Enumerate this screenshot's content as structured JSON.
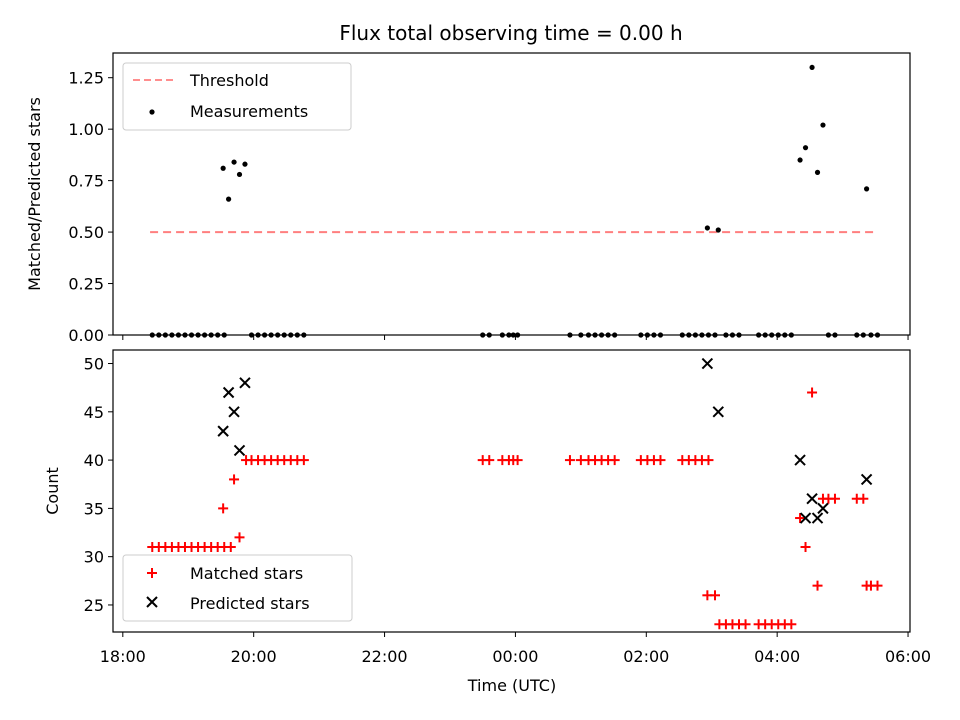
{
  "chart_data": [
    {
      "type": "scatter",
      "title": "Flux total observing time = 0.00 h",
      "xlabel": "",
      "ylabel": "Matched/Predicted stars",
      "xlim": [
        "18:00",
        "06:00"
      ],
      "ylim": [
        0,
        1.37
      ],
      "yticks": [
        "0.00",
        "0.25",
        "0.50",
        "0.75",
        "1.00",
        "1.25"
      ],
      "legend": {
        "position": "upper-left",
        "entries": [
          "Threshold",
          "Measurements"
        ]
      },
      "series": [
        {
          "name": "Threshold",
          "style": "dashed-line",
          "color": "#ff7f7f",
          "points": [
            [
              "18:25",
              0.5
            ],
            [
              "05:30",
              0.5
            ]
          ]
        },
        {
          "name": "Measurements",
          "style": "dot",
          "color": "#000000",
          "points": [
            [
              "18:27",
              0
            ],
            [
              "18:33",
              0
            ],
            [
              "18:39",
              0
            ],
            [
              "18:45",
              0
            ],
            [
              "18:51",
              0
            ],
            [
              "18:57",
              0
            ],
            [
              "19:03",
              0
            ],
            [
              "19:09",
              0
            ],
            [
              "19:15",
              0
            ],
            [
              "19:21",
              0
            ],
            [
              "19:27",
              0
            ],
            [
              "19:33",
              0
            ],
            [
              "19:32",
              0.81
            ],
            [
              "19:37",
              0.66
            ],
            [
              "19:42",
              0.84
            ],
            [
              "19:47",
              0.78
            ],
            [
              "19:52",
              0.83
            ],
            [
              "19:58",
              0
            ],
            [
              "20:04",
              0
            ],
            [
              "20:10",
              0
            ],
            [
              "20:16",
              0
            ],
            [
              "20:22",
              0
            ],
            [
              "20:28",
              0
            ],
            [
              "20:34",
              0
            ],
            [
              "20:40",
              0
            ],
            [
              "20:46",
              0
            ],
            [
              "23:30",
              0
            ],
            [
              "23:36",
              0
            ],
            [
              "23:48",
              0
            ],
            [
              "23:54",
              0
            ],
            [
              "23:58",
              0
            ],
            [
              "00:02",
              0
            ],
            [
              "00:50",
              0
            ],
            [
              "01:00",
              0
            ],
            [
              "01:07",
              0
            ],
            [
              "01:13",
              0
            ],
            [
              "01:19",
              0
            ],
            [
              "01:25",
              0
            ],
            [
              "01:31",
              0
            ],
            [
              "01:55",
              0
            ],
            [
              "02:01",
              0
            ],
            [
              "02:07",
              0
            ],
            [
              "02:13",
              0
            ],
            [
              "02:33",
              0
            ],
            [
              "02:39",
              0
            ],
            [
              "02:45",
              0
            ],
            [
              "02:51",
              0
            ],
            [
              "02:57",
              0
            ],
            [
              "03:03",
              0
            ],
            [
              "03:13",
              0
            ],
            [
              "03:19",
              0
            ],
            [
              "03:25",
              0
            ],
            [
              "02:56",
              0.52
            ],
            [
              "03:06",
              0.51
            ],
            [
              "03:43",
              0
            ],
            [
              "03:49",
              0
            ],
            [
              "03:55",
              0
            ],
            [
              "04:01",
              0
            ],
            [
              "04:07",
              0
            ],
            [
              "04:13",
              0
            ],
            [
              "04:21",
              0.85
            ],
            [
              "04:26",
              0.91
            ],
            [
              "04:32",
              1.3
            ],
            [
              "04:37",
              0.79
            ],
            [
              "04:42",
              1.02
            ],
            [
              "04:47",
              0
            ],
            [
              "04:53",
              0
            ],
            [
              "05:13",
              0
            ],
            [
              "05:19",
              0
            ],
            [
              "05:22",
              0.71
            ],
            [
              "05:26",
              0
            ],
            [
              "05:32",
              0
            ]
          ]
        }
      ]
    },
    {
      "type": "scatter",
      "title": "",
      "xlabel": "Time (UTC)",
      "ylabel": "Count",
      "xlim": [
        "18:00",
        "06:00"
      ],
      "xticks": [
        "18:00",
        "20:00",
        "22:00",
        "00:00",
        "02:00",
        "04:00",
        "06:00"
      ],
      "ylim": [
        22.2,
        51.4
      ],
      "yticks": [
        "25",
        "30",
        "35",
        "40",
        "45",
        "50"
      ],
      "legend": {
        "position": "lower-left",
        "entries": [
          "Matched stars",
          "Predicted stars"
        ]
      },
      "series": [
        {
          "name": "Matched stars",
          "style": "plus",
          "color": "#ff0000",
          "points": [
            [
              "18:27",
              31
            ],
            [
              "18:33",
              31
            ],
            [
              "18:39",
              31
            ],
            [
              "18:45",
              31
            ],
            [
              "18:51",
              31
            ],
            [
              "18:57",
              31
            ],
            [
              "19:03",
              31
            ],
            [
              "19:09",
              31
            ],
            [
              "19:15",
              31
            ],
            [
              "19:21",
              31
            ],
            [
              "19:27",
              31
            ],
            [
              "19:33",
              31
            ],
            [
              "19:39",
              31
            ],
            [
              "19:32",
              35
            ],
            [
              "19:42",
              38
            ],
            [
              "19:47",
              32
            ],
            [
              "19:53",
              40
            ],
            [
              "19:58",
              40
            ],
            [
              "20:04",
              40
            ],
            [
              "20:10",
              40
            ],
            [
              "20:16",
              40
            ],
            [
              "20:22",
              40
            ],
            [
              "20:28",
              40
            ],
            [
              "20:34",
              40
            ],
            [
              "20:40",
              40
            ],
            [
              "20:46",
              40
            ],
            [
              "23:30",
              40
            ],
            [
              "23:36",
              40
            ],
            [
              "23:48",
              40
            ],
            [
              "23:54",
              40
            ],
            [
              "23:58",
              40
            ],
            [
              "00:02",
              40
            ],
            [
              "00:50",
              40
            ],
            [
              "01:00",
              40
            ],
            [
              "01:07",
              40
            ],
            [
              "01:13",
              40
            ],
            [
              "01:19",
              40
            ],
            [
              "01:25",
              40
            ],
            [
              "01:31",
              40
            ],
            [
              "01:55",
              40
            ],
            [
              "02:01",
              40
            ],
            [
              "02:07",
              40
            ],
            [
              "02:13",
              40
            ],
            [
              "02:33",
              40
            ],
            [
              "02:39",
              40
            ],
            [
              "02:45",
              40
            ],
            [
              "02:51",
              40
            ],
            [
              "02:57",
              40
            ],
            [
              "02:56",
              26
            ],
            [
              "03:03",
              26
            ],
            [
              "03:07",
              23
            ],
            [
              "03:13",
              23
            ],
            [
              "03:19",
              23
            ],
            [
              "03:25",
              23
            ],
            [
              "03:31",
              23
            ],
            [
              "03:43",
              23
            ],
            [
              "03:49",
              23
            ],
            [
              "03:55",
              23
            ],
            [
              "04:01",
              23
            ],
            [
              "04:07",
              23
            ],
            [
              "04:13",
              23
            ],
            [
              "04:21",
              34
            ],
            [
              "04:26",
              31
            ],
            [
              "04:32",
              47
            ],
            [
              "04:37",
              27
            ],
            [
              "04:42",
              36
            ],
            [
              "04:47",
              36
            ],
            [
              "04:53",
              36
            ],
            [
              "05:13",
              36
            ],
            [
              "05:19",
              36
            ],
            [
              "05:22",
              27
            ],
            [
              "05:26",
              27
            ],
            [
              "05:32",
              27
            ]
          ]
        },
        {
          "name": "Predicted stars",
          "style": "x",
          "color": "#000000",
          "points": [
            [
              "19:32",
              43
            ],
            [
              "19:37",
              47
            ],
            [
              "19:42",
              45
            ],
            [
              "19:47",
              41
            ],
            [
              "19:52",
              48
            ],
            [
              "02:56",
              50
            ],
            [
              "03:06",
              45
            ],
            [
              "04:21",
              40
            ],
            [
              "04:26",
              34
            ],
            [
              "04:32",
              36
            ],
            [
              "04:37",
              34
            ],
            [
              "04:42",
              35
            ],
            [
              "05:22",
              38
            ]
          ]
        }
      ]
    }
  ]
}
